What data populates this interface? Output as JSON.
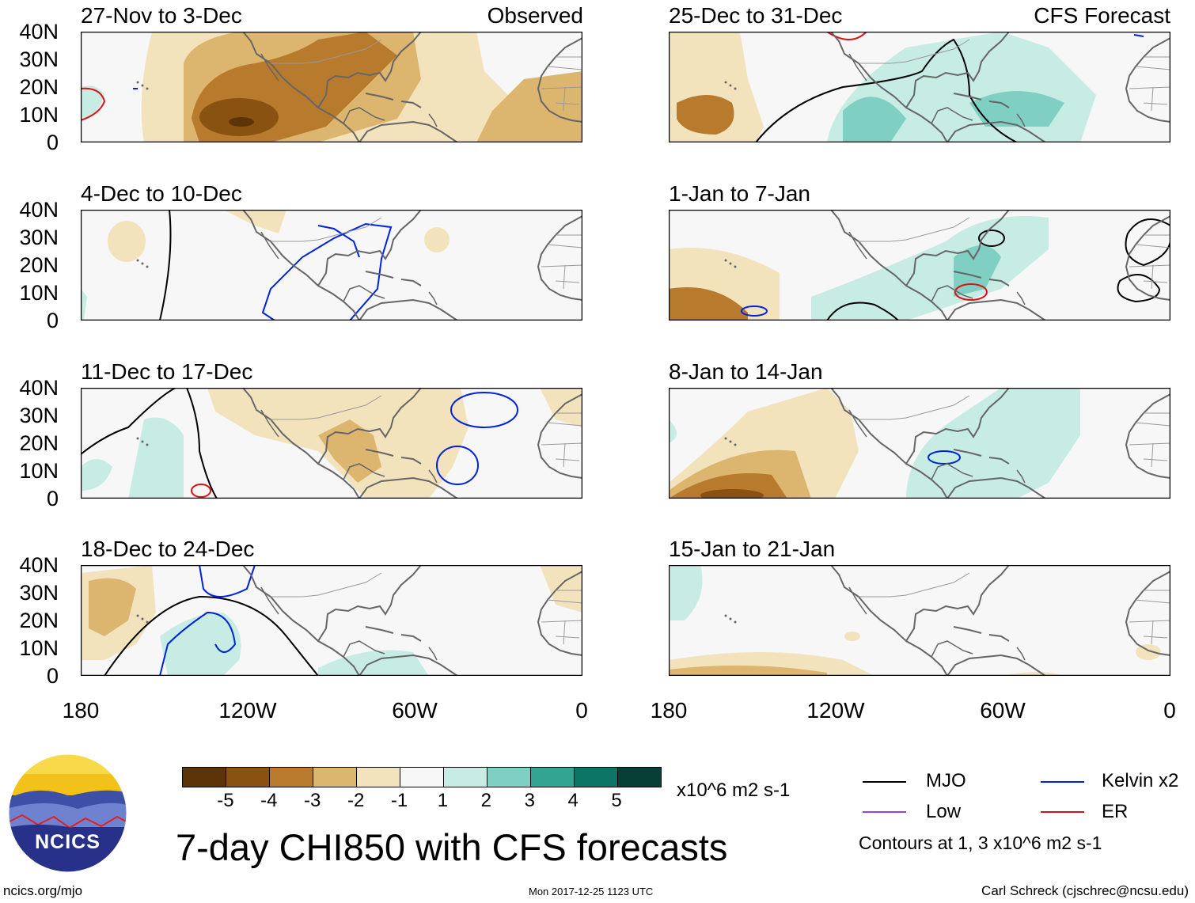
{
  "columns": {
    "left_label": "Observed",
    "right_label": "CFS Forecast"
  },
  "panels": [
    {
      "id": "p1",
      "title": "27-Nov to 3-Dec",
      "kind": "observed"
    },
    {
      "id": "p2",
      "title": "4-Dec to 10-Dec",
      "kind": "observed"
    },
    {
      "id": "p3",
      "title": "11-Dec to 17-Dec",
      "kind": "observed"
    },
    {
      "id": "p4",
      "title": "18-Dec to 24-Dec",
      "kind": "observed"
    },
    {
      "id": "p5",
      "title": "25-Dec to 31-Dec",
      "kind": "forecast"
    },
    {
      "id": "p6",
      "title": "1-Jan to 7-Jan",
      "kind": "forecast"
    },
    {
      "id": "p7",
      "title": "8-Jan to 14-Jan",
      "kind": "forecast"
    },
    {
      "id": "p8",
      "title": "15-Jan to 21-Jan",
      "kind": "forecast"
    }
  ],
  "axes": {
    "lat_ticks": [
      "40N",
      "30N",
      "20N",
      "10N",
      "0"
    ],
    "lon_ticks": [
      "180",
      "120W",
      "60W",
      "0"
    ]
  },
  "colorbar": {
    "labels": [
      "-5",
      "-4",
      "-3",
      "-2",
      "-1",
      "1",
      "2",
      "3",
      "4",
      "5"
    ],
    "colors": [
      "#5c3408",
      "#8a5210",
      "#b87a2c",
      "#dcb56e",
      "#f3e3bd",
      "#f7f7f7",
      "#c6ece3",
      "#7fd0c2",
      "#33a392",
      "#0c7566",
      "#063f35"
    ],
    "units": "x10^6 m2 s-1"
  },
  "legend": {
    "items": [
      {
        "label": "MJO",
        "color": "#000000"
      },
      {
        "label": "Kelvin x2",
        "color": "#0022dd"
      },
      {
        "label": "Low",
        "color": "#a040e0"
      },
      {
        "label": "ER",
        "color": "#dd1111"
      }
    ],
    "contours_note": "Contours at 1, 3 x10^6 m2 s-1"
  },
  "main_title": "7-day CHI850 with CFS forecasts",
  "logo_text": "NCICS",
  "footer": {
    "left": "ncics.org/mjo",
    "center": "Mon 2017-12-25 1123 UTC",
    "right": "Carl Schreck (cjschrec@ncsu.edu)"
  }
}
